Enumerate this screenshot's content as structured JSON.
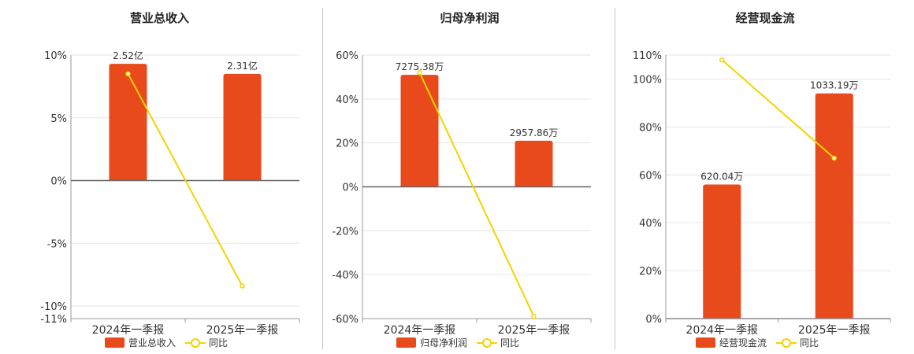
{
  "colors": {
    "bar": "#e84a1b",
    "line": "#f2d400",
    "grid": "#e3e6ee",
    "axis": "#666666",
    "text": "#333333"
  },
  "chart_data": [
    {
      "type": "bar",
      "title": "营业总收入",
      "categories": [
        "2024年一季报",
        "2025年一季报"
      ],
      "ylim": [
        -11,
        10
      ],
      "yticks": [
        10,
        5,
        0,
        -5,
        -10,
        -11
      ],
      "ytick_labels": [
        "10%",
        "5%",
        "0%",
        "-5%",
        "-10%",
        "-11%"
      ],
      "series": [
        {
          "name": "营业总收入",
          "kind": "bar",
          "values": [
            9.3,
            8.5
          ],
          "labels": [
            "2.52亿",
            "2.31亿"
          ]
        },
        {
          "name": "同比",
          "kind": "line",
          "values": [
            8.5,
            -8.4
          ]
        }
      ],
      "legend": "bottom"
    },
    {
      "type": "bar",
      "title": "归母净利润",
      "categories": [
        "2024年一季报",
        "2025年一季报"
      ],
      "ylim": [
        -60,
        60
      ],
      "yticks": [
        60,
        40,
        20,
        0,
        -20,
        -40,
        -60
      ],
      "ytick_labels": [
        "60%",
        "40%",
        "20%",
        "0%",
        "-20%",
        "-40%",
        "-60%"
      ],
      "series": [
        {
          "name": "归母净利润",
          "kind": "bar",
          "values": [
            51,
            21
          ],
          "labels": [
            "7275.38万",
            "2957.86万"
          ]
        },
        {
          "name": "同比",
          "kind": "line",
          "values": [
            52,
            -59
          ]
        }
      ],
      "legend": "bottom"
    },
    {
      "type": "bar",
      "title": "经营现金流",
      "categories": [
        "2024年一季报",
        "2025年一季报"
      ],
      "ylim": [
        0,
        110
      ],
      "yticks": [
        110,
        100,
        80,
        60,
        40,
        20,
        0
      ],
      "ytick_labels": [
        "110%",
        "100%",
        "80%",
        "60%",
        "40%",
        "20%",
        "0%"
      ],
      "series": [
        {
          "name": "经营现金流",
          "kind": "bar",
          "values": [
            56,
            94
          ],
          "labels": [
            "620.04万",
            "1033.19万"
          ]
        },
        {
          "name": "同比",
          "kind": "line",
          "values": [
            108,
            67
          ]
        }
      ],
      "legend": "bottom"
    }
  ]
}
